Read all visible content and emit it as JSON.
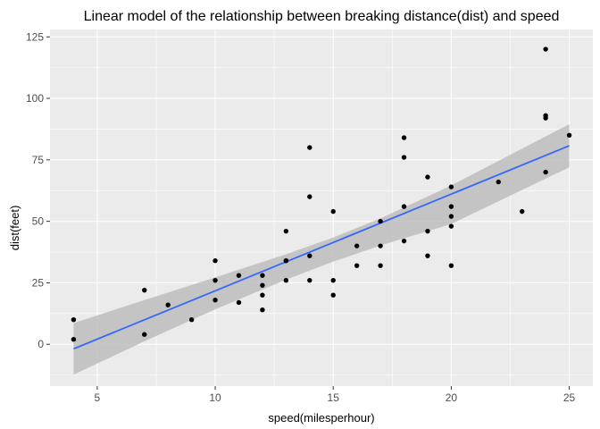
{
  "chart_data": {
    "type": "scatter",
    "title": "Linear model of the relationship between breaking distance(dist) and speed",
    "xlabel": "speed(milesperhour)",
    "ylabel": "dist(feet)",
    "xlim": [
      3.0,
      26.0
    ],
    "ylim": [
      -17.0,
      128.0
    ],
    "x_ticks": [
      5,
      10,
      15,
      20,
      25
    ],
    "y_ticks": [
      0,
      25,
      50,
      75,
      100,
      125
    ],
    "grid": true,
    "points": [
      [
        4,
        2
      ],
      [
        4,
        10
      ],
      [
        7,
        4
      ],
      [
        7,
        22
      ],
      [
        8,
        16
      ],
      [
        9,
        10
      ],
      [
        10,
        18
      ],
      [
        10,
        26
      ],
      [
        10,
        34
      ],
      [
        11,
        17
      ],
      [
        11,
        28
      ],
      [
        12,
        14
      ],
      [
        12,
        20
      ],
      [
        12,
        24
      ],
      [
        12,
        28
      ],
      [
        13,
        26
      ],
      [
        13,
        34
      ],
      [
        13,
        34
      ],
      [
        13,
        46
      ],
      [
        14,
        26
      ],
      [
        14,
        36
      ],
      [
        14,
        60
      ],
      [
        14,
        80
      ],
      [
        15,
        20
      ],
      [
        15,
        26
      ],
      [
        15,
        54
      ],
      [
        16,
        32
      ],
      [
        16,
        40
      ],
      [
        17,
        32
      ],
      [
        17,
        40
      ],
      [
        17,
        50
      ],
      [
        18,
        42
      ],
      [
        18,
        56
      ],
      [
        18,
        76
      ],
      [
        18,
        84
      ],
      [
        19,
        36
      ],
      [
        19,
        46
      ],
      [
        19,
        68
      ],
      [
        20,
        32
      ],
      [
        20,
        48
      ],
      [
        20,
        52
      ],
      [
        20,
        56
      ],
      [
        20,
        64
      ],
      [
        22,
        66
      ],
      [
        23,
        54
      ],
      [
        24,
        70
      ],
      [
        24,
        92
      ],
      [
        24,
        93
      ],
      [
        24,
        120
      ],
      [
        25,
        85
      ]
    ],
    "fit_line": {
      "x": [
        4,
        25
      ],
      "y": [
        -1.85,
        80.73
      ]
    },
    "confidence_band": {
      "x": [
        4,
        7,
        10,
        13,
        15,
        17,
        20,
        25
      ],
      "lower": [
        -12.3,
        1.2,
        14.2,
        26.3,
        33.6,
        40.2,
        48.9,
        72.0
      ],
      "upper": [
        8.6,
        18.0,
        27.2,
        36.6,
        43.4,
        51.2,
        64.6,
        89.5
      ]
    },
    "colors": {
      "panel": "#ebebeb",
      "grid": "#ffffff",
      "points": "#000000",
      "line": "#3366ff",
      "band": "#bdbdbd"
    }
  }
}
